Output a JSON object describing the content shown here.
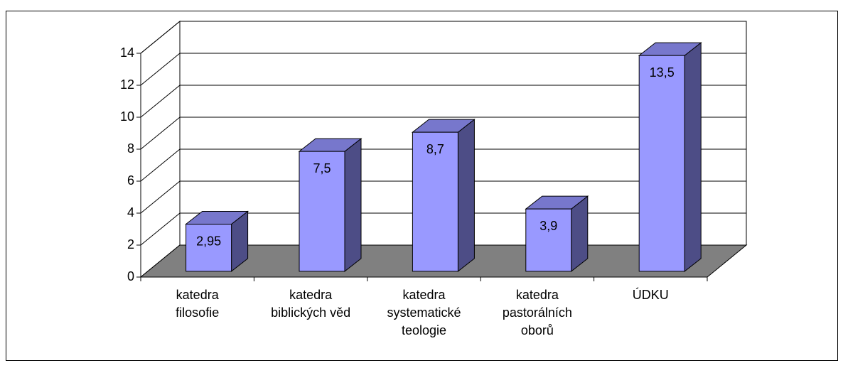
{
  "chart_data": {
    "type": "bar3d",
    "categories": [
      [
        "katedra",
        "filosofie"
      ],
      [
        "katedra",
        "biblických věd"
      ],
      [
        "katedra",
        "systematické",
        "teologie"
      ],
      [
        "katedra",
        "pastorálních",
        "oborů"
      ],
      [
        "ÚDKU"
      ]
    ],
    "values": [
      2.95,
      7.5,
      8.7,
      3.9,
      13.5
    ],
    "value_labels": [
      "2,95",
      "7,5",
      "8,7",
      "3,9",
      "13,5"
    ],
    "color": "#9999ff",
    "ylim": [
      0,
      14
    ],
    "yticks": [
      0,
      2,
      4,
      6,
      8,
      10,
      12,
      14
    ],
    "grid": true
  }
}
